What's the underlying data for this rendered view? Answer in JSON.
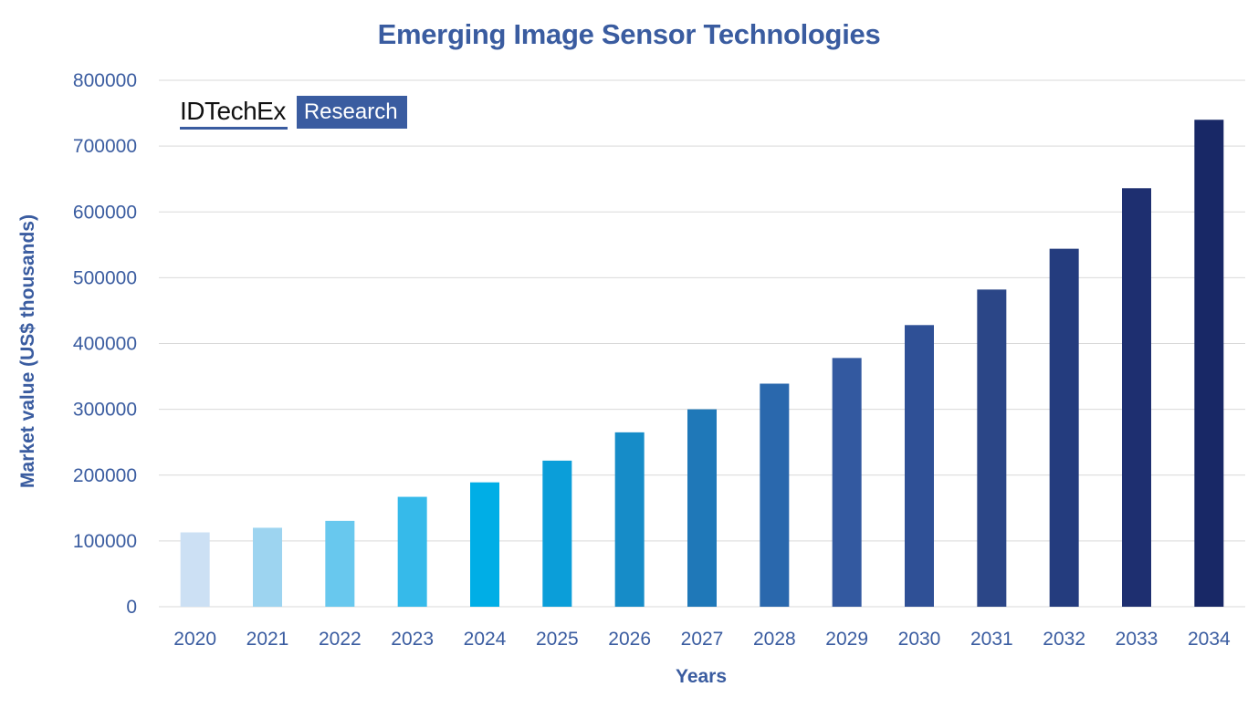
{
  "chart_data": {
    "type": "bar",
    "title": "Emerging Image Sensor Technologies",
    "xlabel": "Years",
    "ylabel": "Market value (US$ thousands)",
    "categories": [
      "2020",
      "2021",
      "2022",
      "2023",
      "2024",
      "2025",
      "2026",
      "2027",
      "2028",
      "2029",
      "2030",
      "2031",
      "2032",
      "2033",
      "2034"
    ],
    "values": [
      113000,
      120000,
      130500,
      167000,
      189000,
      222000,
      265000,
      300000,
      339000,
      378000,
      428000,
      482000,
      544000,
      636000,
      740000
    ],
    "colors": [
      "#cce0f4",
      "#9dd4f0",
      "#68c8ee",
      "#36baea",
      "#00aee6",
      "#0b9ed9",
      "#168cc8",
      "#1f78b8",
      "#2a68ad",
      "#3359a0",
      "#2f5096",
      "#2b4687",
      "#243c7e",
      "#1e2f70",
      "#182866"
    ],
    "ylim": [
      0,
      800000
    ],
    "yticks": [
      "0",
      "100000",
      "200000",
      "300000",
      "400000",
      "500000",
      "600000",
      "700000",
      "800000"
    ],
    "ytick_values": [
      0,
      100000,
      200000,
      300000,
      400000,
      500000,
      600000,
      700000,
      800000
    ],
    "grid": true,
    "legend": "none",
    "gridline_color": "#d9d9d9",
    "text_color": "#3a5ca0"
  },
  "logo": {
    "brand": "IDTechEx",
    "tag": "Research"
  }
}
